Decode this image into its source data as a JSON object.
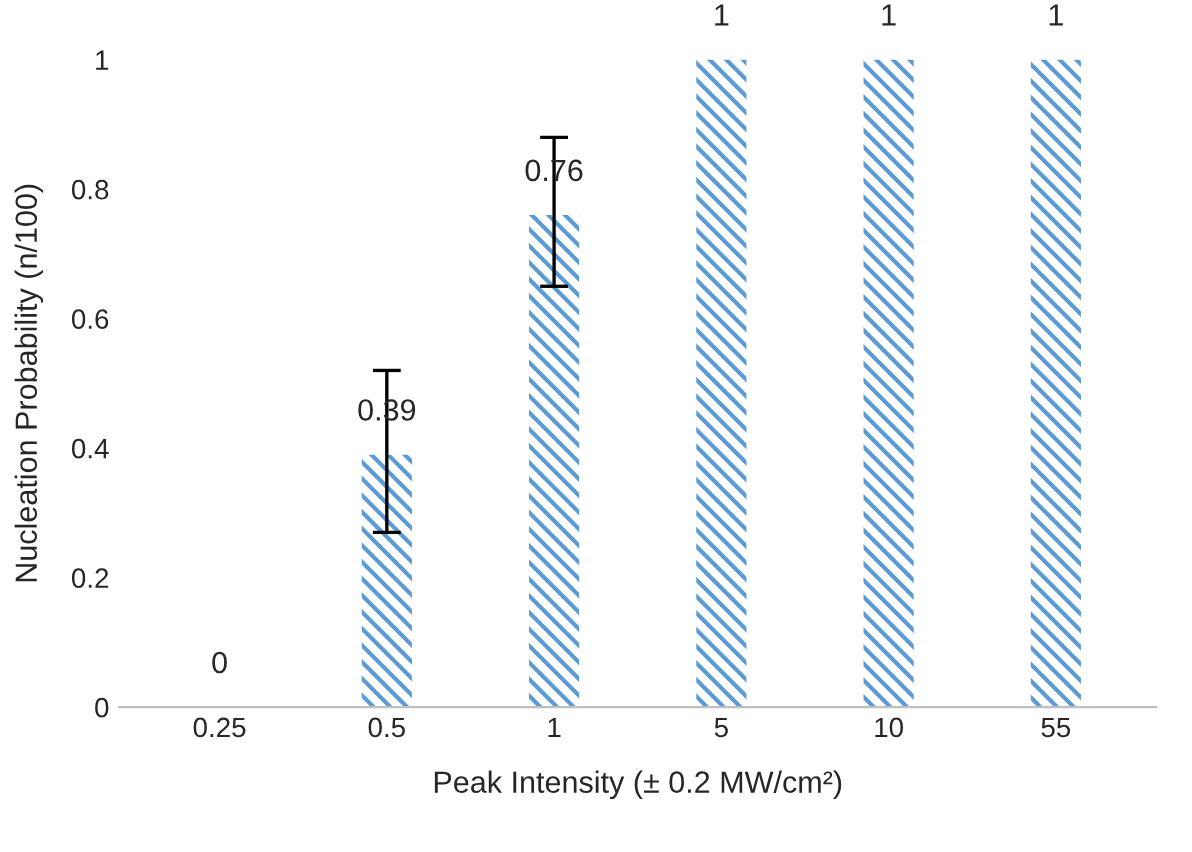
{
  "chart_data": {
    "type": "bar",
    "xlabel": "Peak Intensity (± 0.2 MW/cm²)",
    "ylabel": "Nucleation Probability (n/100)",
    "categories": [
      "0.25",
      "0.5",
      "1",
      "5",
      "10",
      "55"
    ],
    "values": [
      0,
      0.39,
      0.76,
      1,
      1,
      1
    ],
    "errors": [
      null,
      [
        0.27,
        0.52
      ],
      [
        0.65,
        0.88
      ],
      null,
      null,
      null
    ],
    "color": "#5b9bd5",
    "ylim": [
      0,
      1
    ],
    "yticks": [
      0,
      0.2,
      0.4,
      0.6,
      0.8,
      1
    ],
    "data_labels": true,
    "grid": false
  }
}
